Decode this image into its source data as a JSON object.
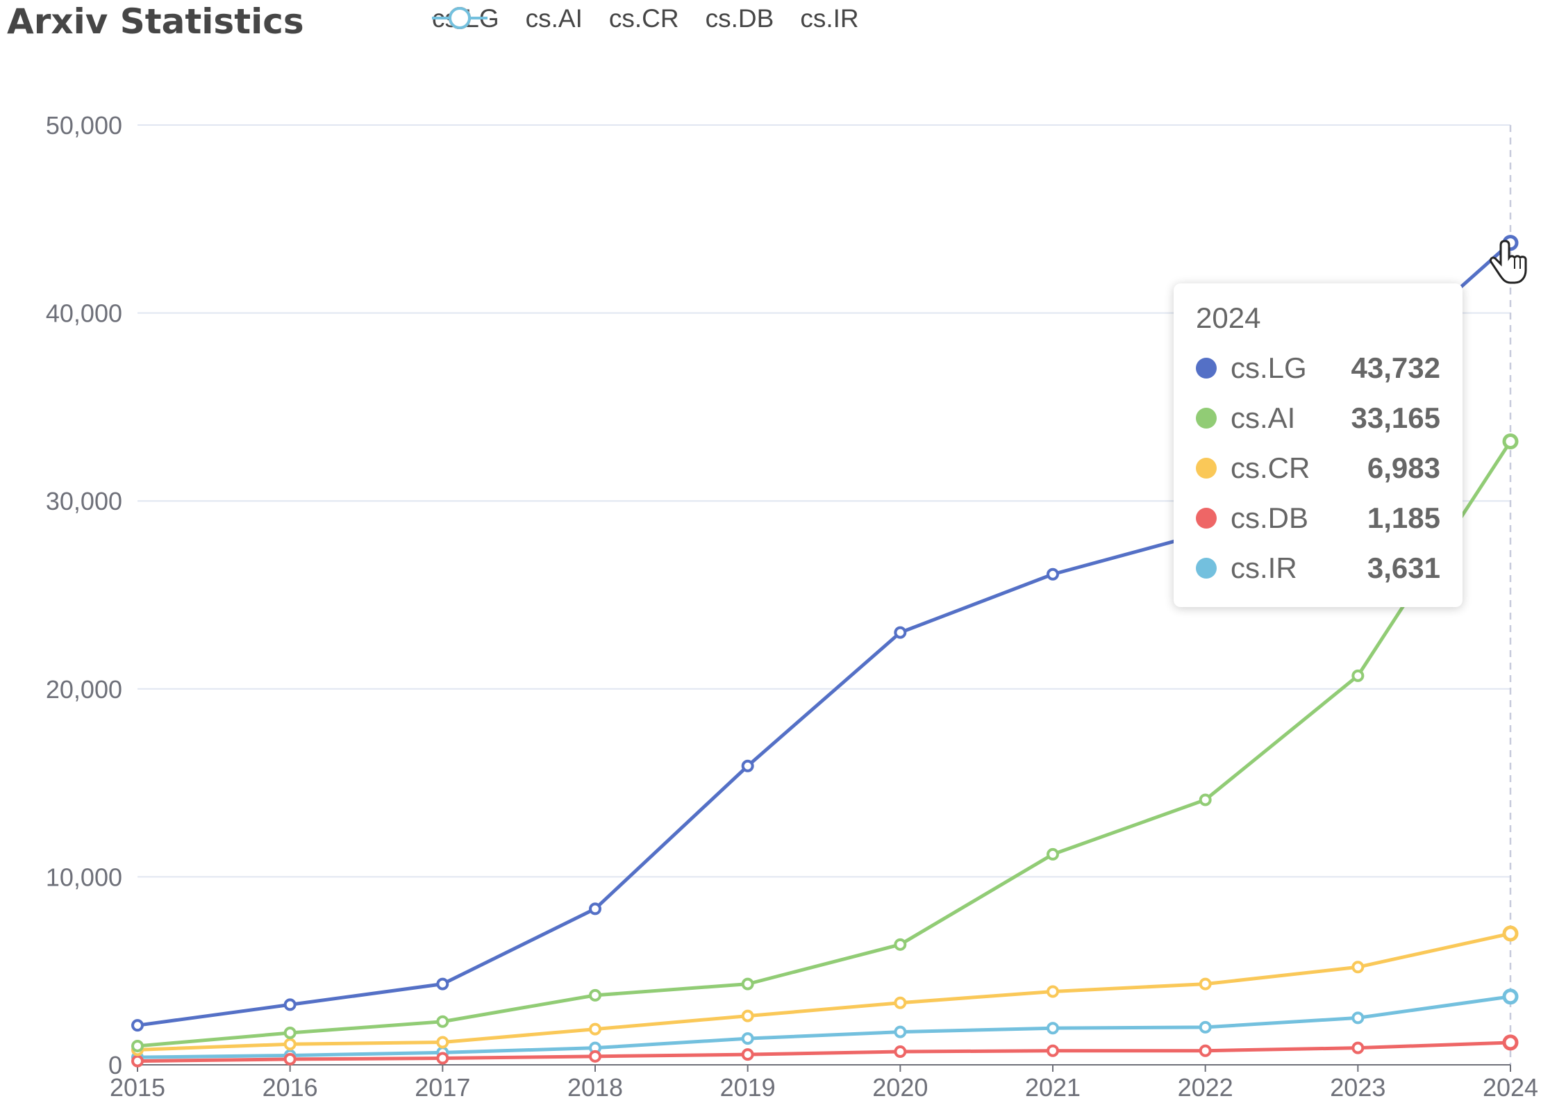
{
  "title": "Arxiv Statistics",
  "legend": [
    {
      "name": "cs.LG",
      "color": "#5470c6"
    },
    {
      "name": "cs.AI",
      "color": "#91cc75"
    },
    {
      "name": "cs.CR",
      "color": "#fac858"
    },
    {
      "name": "cs.DB",
      "color": "#ee6666"
    },
    {
      "name": "cs.IR",
      "color": "#73c0de"
    }
  ],
  "tooltip": {
    "title": "2024",
    "rows": [
      {
        "name": "cs.LG",
        "value": "43,732",
        "color": "#5470c6"
      },
      {
        "name": "cs.AI",
        "value": "33,165",
        "color": "#91cc75"
      },
      {
        "name": "cs.CR",
        "value": "6,983",
        "color": "#fac858"
      },
      {
        "name": "cs.DB",
        "value": "1,185",
        "color": "#ee6666"
      },
      {
        "name": "cs.IR",
        "value": "3,631",
        "color": "#73c0de"
      }
    ]
  },
  "chart_data": {
    "type": "line",
    "title": "Arxiv Statistics",
    "x": [
      "2015",
      "2016",
      "2017",
      "2018",
      "2019",
      "2020",
      "2021",
      "2022",
      "2023",
      "2024"
    ],
    "ylim": [
      0,
      50000
    ],
    "yticks": [
      0,
      10000,
      20000,
      30000,
      40000,
      50000
    ],
    "ytick_labels": [
      "0",
      "10,000",
      "20,000",
      "30,000",
      "40,000",
      "50,000"
    ],
    "grid": true,
    "legend_position": "top",
    "series": [
      {
        "name": "cs.LG",
        "color": "#5470c6",
        "values": [
          2100,
          3200,
          4300,
          8300,
          15900,
          23000,
          26100,
          28300,
          36500,
          43732
        ]
      },
      {
        "name": "cs.AI",
        "color": "#91cc75",
        "values": [
          1000,
          1700,
          2300,
          3700,
          4300,
          6400,
          11200,
          14100,
          20700,
          33165
        ]
      },
      {
        "name": "cs.CR",
        "color": "#fac858",
        "values": [
          800,
          1100,
          1200,
          1900,
          2600,
          3300,
          3900,
          4300,
          5200,
          6983
        ]
      },
      {
        "name": "cs.DB",
        "color": "#ee6666",
        "values": [
          200,
          300,
          350,
          450,
          550,
          700,
          750,
          750,
          900,
          1185
        ]
      },
      {
        "name": "cs.IR",
        "color": "#73c0de",
        "values": [
          400,
          500,
          650,
          900,
          1400,
          1750,
          1950,
          2000,
          2500,
          3631
        ]
      }
    ],
    "highlight": "2024"
  }
}
